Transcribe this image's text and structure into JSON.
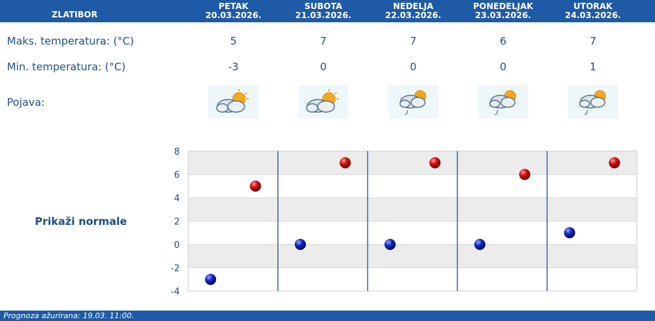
{
  "header": {
    "location": "ZLATIBOR",
    "days": [
      {
        "name": "PETAK",
        "date": "20.03.2026."
      },
      {
        "name": "SUBOTA",
        "date": "21.03.2026."
      },
      {
        "name": "NEDELJA",
        "date": "22.03.2026."
      },
      {
        "name": "PONEDELJAK",
        "date": "23.03.2026."
      },
      {
        "name": "UTORAK",
        "date": "24.03.2026."
      }
    ]
  },
  "rows": {
    "max_label": "Maks. temperatura: (°C)",
    "min_label": "Min. temperatura: (°C)",
    "phenomenon_label": "Pojava:",
    "max_values": [
      "5",
      "7",
      "7",
      "6",
      "7"
    ],
    "min_values": [
      "-3",
      "0",
      "0",
      "0",
      "1"
    ],
    "icons": [
      "partly-cloudy-icon",
      "partly-cloudy-icon",
      "cloudy-light-rain-icon",
      "cloudy-light-rain-icon",
      "cloudy-light-rain-icon"
    ]
  },
  "normals_link": "Prikaži normale",
  "footer": {
    "updated": "Prognoza ažurirana:  19.03. 11:00."
  },
  "colors": {
    "header_bg": "#1e5aa6",
    "text": "#1f4e85",
    "max_marker": "#cc0000",
    "min_marker": "#0a1fb0",
    "day_divider": "#3f66a6"
  },
  "chart_data": {
    "type": "scatter",
    "categories": [
      "PETAK",
      "SUBOTA",
      "NEDELJA",
      "PONEDELJAK",
      "UTORAK"
    ],
    "series": [
      {
        "values": [
          5,
          7,
          7,
          6,
          7
        ],
        "color": "#cc0000"
      },
      {
        "values": [
          -3,
          0,
          0,
          0,
          1
        ],
        "color": "#0a1fb0"
      }
    ],
    "yticks": [
      "8",
      "6",
      "4",
      "2",
      "0",
      "-2",
      "-4"
    ],
    "ylim": [
      -4,
      8
    ],
    "grid": true,
    "alternating_bands": true
  }
}
